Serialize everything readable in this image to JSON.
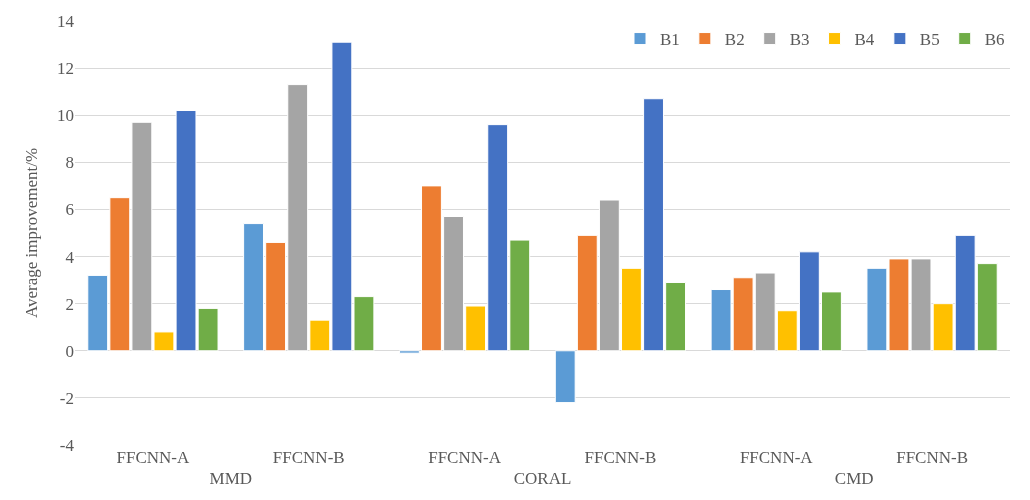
{
  "chart_data": {
    "type": "bar",
    "ylabel": "Average improvement/%",
    "categories": [
      "FFCNN-A",
      "FFCNN-B",
      "FFCNN-A",
      "FFCNN-B",
      "FFCNN-A",
      "FFCNN-B"
    ],
    "annotations": [
      "MMD",
      "CORAL",
      "CMD"
    ],
    "series": [
      {
        "name": "B1",
        "color": "#5b9bd5",
        "values": [
          3.2,
          5.4,
          -0.1,
          -2.2,
          2.6,
          3.5
        ]
      },
      {
        "name": "B2",
        "color": "#ed7d31",
        "values": [
          6.5,
          4.6,
          7.0,
          4.9,
          3.1,
          3.9
        ]
      },
      {
        "name": "B3",
        "color": "#a5a5a5",
        "values": [
          9.7,
          11.3,
          5.7,
          6.4,
          3.3,
          3.9
        ]
      },
      {
        "name": "B4",
        "color": "#ffc000",
        "values": [
          0.8,
          1.3,
          1.9,
          3.5,
          1.7,
          2.0
        ]
      },
      {
        "name": "B5",
        "color": "#4472c4",
        "values": [
          10.2,
          13.1,
          9.6,
          10.7,
          4.2,
          4.9
        ]
      },
      {
        "name": "B6",
        "color": "#70ad47",
        "values": [
          1.8,
          2.3,
          4.7,
          2.9,
          2.5,
          3.7
        ]
      }
    ],
    "ylim": [
      -4,
      14
    ],
    "yticks": [
      -4,
      -2,
      0,
      2,
      4,
      6,
      8,
      10,
      12,
      14
    ],
    "grid": "y",
    "legend": "top right"
  }
}
